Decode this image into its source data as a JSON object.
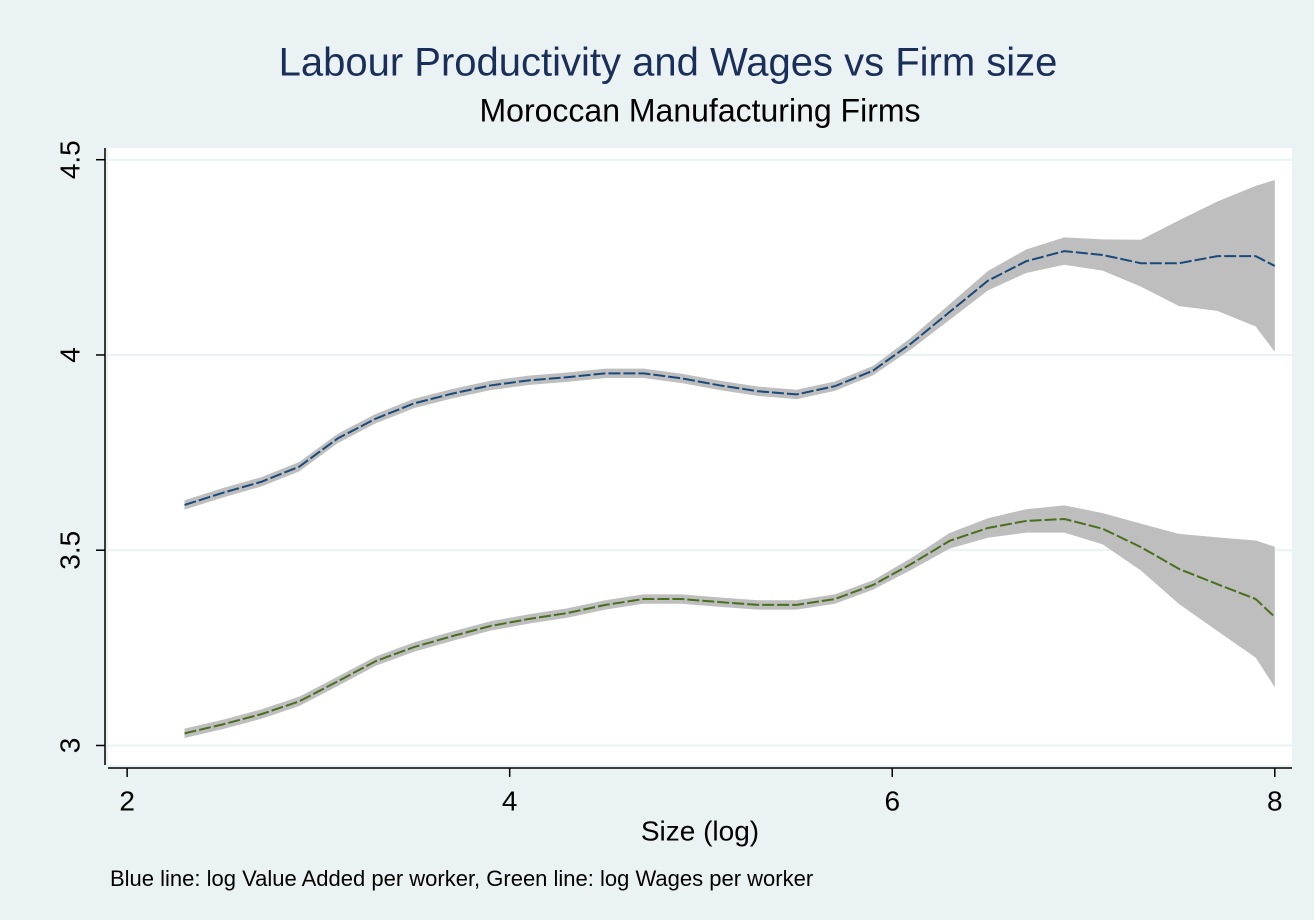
{
  "chart_data": {
    "type": "line",
    "title": "Labour Productivity and Wages vs Firm size",
    "subtitle": "Moroccan Manufacturing Firms",
    "xlabel": "Size (log)",
    "note": "Blue line: log Value Added per worker, Green line: log Wages per worker",
    "x": [
      2.3,
      2.5,
      2.7,
      2.9,
      3.1,
      3.3,
      3.5,
      3.7,
      3.9,
      4.1,
      4.3,
      4.5,
      4.7,
      4.9,
      5.1,
      5.3,
      5.5,
      5.7,
      5.9,
      6.1,
      6.3,
      6.5,
      6.7,
      6.9,
      7.1,
      7.3,
      7.5,
      7.7,
      7.9,
      8.0
    ],
    "series": [
      {
        "color": "#1a4a7a",
        "band_color": "#bebebe",
        "values": [
          3.616,
          3.647,
          3.675,
          3.714,
          3.786,
          3.837,
          3.876,
          3.901,
          3.922,
          3.935,
          3.943,
          3.953,
          3.953,
          3.94,
          3.922,
          3.907,
          3.899,
          3.92,
          3.96,
          4.03,
          4.11,
          4.19,
          4.24,
          4.266,
          4.256,
          4.235,
          4.235,
          4.253,
          4.253,
          4.228
        ],
        "lower": [
          3.604,
          3.635,
          3.663,
          3.702,
          3.774,
          3.825,
          3.864,
          3.889,
          3.91,
          3.923,
          3.931,
          3.941,
          3.941,
          3.928,
          3.91,
          3.895,
          3.887,
          3.908,
          3.948,
          4.015,
          4.09,
          4.165,
          4.21,
          4.231,
          4.216,
          4.175,
          4.125,
          4.113,
          4.073,
          4.008
        ],
        "upper": [
          3.628,
          3.659,
          3.687,
          3.726,
          3.798,
          3.849,
          3.888,
          3.913,
          3.934,
          3.947,
          3.955,
          3.965,
          3.965,
          3.952,
          3.934,
          3.919,
          3.911,
          3.932,
          3.972,
          4.045,
          4.13,
          4.215,
          4.27,
          4.301,
          4.296,
          4.295,
          4.345,
          4.393,
          4.433,
          4.448
        ]
      },
      {
        "color": "#4a6e1e",
        "band_color": "#bebebe",
        "values": [
          3.031,
          3.054,
          3.08,
          3.113,
          3.164,
          3.216,
          3.252,
          3.28,
          3.306,
          3.324,
          3.339,
          3.36,
          3.375,
          3.375,
          3.367,
          3.36,
          3.36,
          3.375,
          3.411,
          3.465,
          3.524,
          3.557,
          3.575,
          3.58,
          3.555,
          3.508,
          3.452,
          3.413,
          3.375,
          3.329
        ],
        "lower": [
          3.019,
          3.042,
          3.068,
          3.101,
          3.152,
          3.204,
          3.24,
          3.268,
          3.294,
          3.312,
          3.327,
          3.348,
          3.363,
          3.363,
          3.355,
          3.348,
          3.348,
          3.363,
          3.399,
          3.45,
          3.504,
          3.532,
          3.545,
          3.545,
          3.515,
          3.448,
          3.362,
          3.293,
          3.225,
          3.149
        ],
        "upper": [
          3.043,
          3.066,
          3.092,
          3.125,
          3.176,
          3.228,
          3.264,
          3.292,
          3.318,
          3.336,
          3.351,
          3.372,
          3.387,
          3.387,
          3.379,
          3.372,
          3.372,
          3.387,
          3.423,
          3.48,
          3.544,
          3.582,
          3.605,
          3.615,
          3.595,
          3.568,
          3.542,
          3.533,
          3.525,
          3.509
        ]
      }
    ],
    "xlim": [
      1.9,
      8.09
    ],
    "xticks": [
      2,
      4,
      6,
      8
    ],
    "ylim": [
      2.95,
      4.53
    ],
    "yticks": [
      3,
      3.5,
      4,
      4.5
    ],
    "grid": true
  }
}
